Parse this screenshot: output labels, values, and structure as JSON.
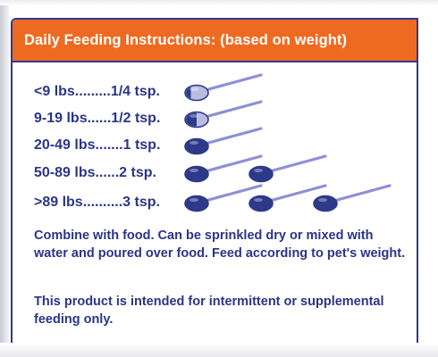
{
  "header": {
    "title": "Daily Feeding Instructions: (based on weight)"
  },
  "colors": {
    "header_bg": "#ef6a21",
    "text": "#2b3588",
    "spoon_full": "#2d3a8a",
    "spoon_partial": "#b9bbe3"
  },
  "rows": [
    {
      "label": "<9 lbs.........1/4 tsp.",
      "spoons": 1,
      "last_fill": 0.25
    },
    {
      "label": "9-19 lbs......1/2 tsp.",
      "spoons": 1,
      "last_fill": 0.5
    },
    {
      "label": "20-49 lbs.......1 tsp.",
      "spoons": 1,
      "last_fill": 1
    },
    {
      "label": "50-89 lbs......2 tsp.",
      "spoons": 2,
      "last_fill": 1
    },
    {
      "label": ">89 lbs..........3 tsp.",
      "spoons": 3,
      "last_fill": 1
    }
  ],
  "directions": "Combine with food. Can be sprinkled dry or mixed with water and poured over food. Feed according to pet's weight.",
  "note": "This product is intended for intermittent or supplemental feeding only."
}
